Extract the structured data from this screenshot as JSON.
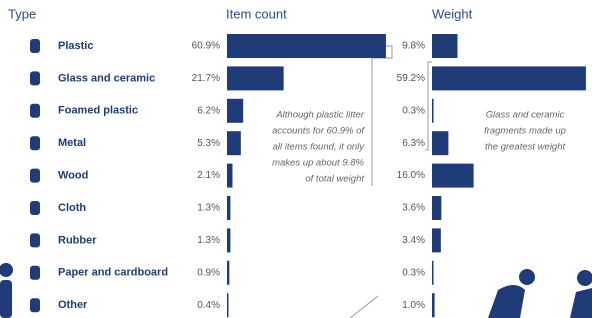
{
  "chart_data": {
    "type": "paired-bar",
    "category_header": "Type",
    "categories": [
      "Plastic",
      "Glass and ceramic",
      "Foamed plastic",
      "Metal",
      "Wood",
      "Cloth",
      "Rubber",
      "Paper and cardboard",
      "Other"
    ],
    "series": [
      {
        "name": "Item count",
        "color": "#1f3c78",
        "values": [
          60.9,
          21.7,
          6.2,
          5.3,
          2.1,
          1.3,
          1.3,
          0.9,
          0.4
        ],
        "value_labels": [
          "60.9%",
          "21.7%",
          "6.2%",
          "5.3%",
          "2.1%",
          "1.3%",
          "1.3%",
          "0.9%",
          "0.4%"
        ]
      },
      {
        "name": "Weight",
        "color": "#1f3c78",
        "values": [
          9.8,
          59.2,
          0.3,
          6.3,
          16.0,
          3.6,
          3.4,
          0.3,
          1.0
        ],
        "value_labels": [
          "9.8%",
          "59.2%",
          "0.3%",
          "6.3%",
          "16.0%",
          "3.6%",
          "3.4%",
          "0.3%",
          "1.0%"
        ]
      }
    ],
    "annotations": [
      {
        "lines": [
          "Although plastic litter",
          "accounts for 60.9% of",
          "all items found, it only",
          "makes up about 9.8%",
          "of total weight"
        ]
      },
      {
        "lines": [
          "Glass and ceramic",
          "fragments made up",
          "the greatest weight"
        ]
      }
    ]
  }
}
